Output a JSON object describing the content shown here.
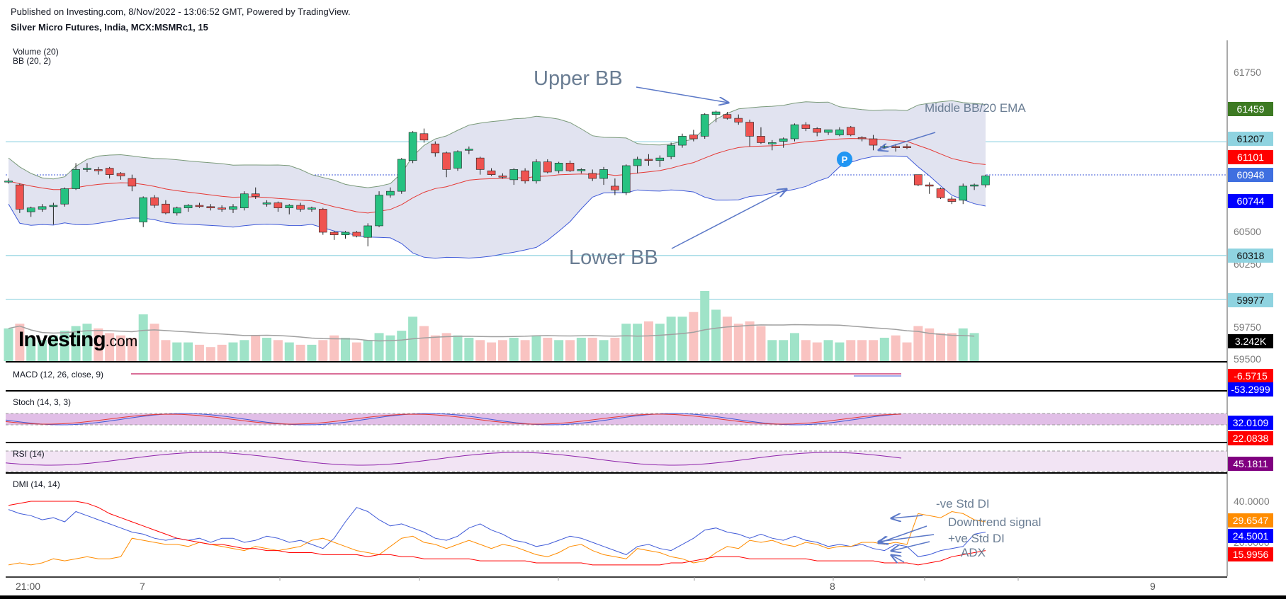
{
  "header": {
    "published": "Published on Investing.com, 8/Nov/2022 - 13:06:52 GMT, Powered by TradingView.",
    "symbol": "Silver Micro Futures, India, MCX:MSMRc1, 15"
  },
  "logo": {
    "main": "Investing",
    "suffix": ".com"
  },
  "indicators": {
    "volume": "Volume (20)",
    "bb": "BB (20, 2)",
    "macd": "MACD (12, 26, close, 9)",
    "stoch": "Stoch (14, 3, 3)",
    "rsi": "RSI (14)",
    "dmi": "DMI (14, 14)"
  },
  "annotations": {
    "upper_bb": "Upper BB",
    "middle_bb": "Middle BB/20 EMA",
    "lower_bb": "Lower BB",
    "neg_di": "-ve Std DI",
    "downtrend": "Downtrend signal",
    "pos_di": "+ve Std DI",
    "adx": "ADX"
  },
  "colors": {
    "up": "#26c281",
    "down": "#ef5350",
    "band_fill": "#e1e3f0",
    "upper_lower_band": "#3f5ad8",
    "middle_band": "#e53935",
    "vol_up": "#9fe3c8",
    "vol_down": "#f9c3c1",
    "vol_ma": "#a0a0a0",
    "hline": "#8fd3e0",
    "current_line": "#3f5ad8",
    "osc_fill": "#e1bee7",
    "rsi_fill": "#f2e4f4",
    "annotation": "#6a7d93",
    "arrow": "#5b78c7"
  },
  "chart_data": {
    "type": "candlestick",
    "candles": [
      [
        60900,
        60920,
        60880,
        60900
      ],
      [
        60870,
        60880,
        60650,
        60680
      ],
      [
        60660,
        60700,
        60620,
        60690
      ],
      [
        60680,
        60720,
        60660,
        60700
      ],
      [
        60700,
        60730,
        60560,
        60710
      ],
      [
        60720,
        60850,
        60700,
        60840
      ],
      [
        60840,
        61040,
        60830,
        60990
      ],
      [
        60990,
        61040,
        60970,
        61000
      ],
      [
        60990,
        61010,
        60950,
        60980
      ],
      [
        61000,
        61010,
        60920,
        60950
      ],
      [
        60960,
        60970,
        60910,
        60940
      ],
      [
        60920,
        60950,
        60820,
        60860
      ],
      [
        60580,
        60780,
        60540,
        60770
      ],
      [
        60770,
        60790,
        60690,
        60710
      ],
      [
        60720,
        60750,
        60640,
        60650
      ],
      [
        60650,
        60700,
        60630,
        60690
      ],
      [
        60690,
        60720,
        60660,
        60710
      ],
      [
        60710,
        60730,
        60690,
        60700
      ],
      [
        60700,
        60720,
        60670,
        60690
      ],
      [
        60690,
        60710,
        60660,
        60680
      ],
      [
        60680,
        60720,
        60650,
        60700
      ],
      [
        60690,
        60820,
        60670,
        60800
      ],
      [
        60800,
        60850,
        60760,
        60780
      ],
      [
        60720,
        60750,
        60700,
        60730
      ],
      [
        60730,
        60740,
        60660,
        60690
      ],
      [
        60690,
        60720,
        60640,
        60710
      ],
      [
        60710,
        60730,
        60660,
        60680
      ],
      [
        60680,
        60700,
        60660,
        60690
      ],
      [
        60680,
        60690,
        60480,
        60500
      ],
      [
        60500,
        60510,
        60440,
        60480
      ],
      [
        60480,
        60510,
        60450,
        60500
      ],
      [
        60500,
        60510,
        60460,
        60470
      ],
      [
        60460,
        60570,
        60390,
        60550
      ],
      [
        60550,
        60820,
        60540,
        60790
      ],
      [
        60790,
        60850,
        60770,
        60820
      ],
      [
        60820,
        61080,
        60800,
        61070
      ],
      [
        61060,
        61290,
        61040,
        61280
      ],
      [
        61270,
        61310,
        61200,
        61220
      ],
      [
        61190,
        61210,
        61090,
        61120
      ],
      [
        61120,
        61130,
        60930,
        60990
      ],
      [
        61000,
        61140,
        60980,
        61130
      ],
      [
        61140,
        61170,
        61110,
        61150
      ],
      [
        61080,
        61090,
        60950,
        60990
      ],
      [
        60980,
        61000,
        60940,
        60950
      ],
      [
        60940,
        60960,
        60920,
        60930
      ],
      [
        60910,
        61000,
        60870,
        60990
      ],
      [
        60980,
        61000,
        60880,
        60900
      ],
      [
        60900,
        61070,
        60880,
        61050
      ],
      [
        61050,
        61070,
        60960,
        60970
      ],
      [
        60980,
        61050,
        60960,
        61040
      ],
      [
        61040,
        61060,
        60970,
        60980
      ],
      [
        60980,
        61000,
        60960,
        60990
      ],
      [
        60960,
        60990,
        60900,
        60920
      ],
      [
        60920,
        61010,
        60870,
        60990
      ],
      [
        60860,
        60920,
        60790,
        60830
      ],
      [
        60810,
        61030,
        60790,
        61020
      ],
      [
        61020,
        61090,
        60960,
        61070
      ],
      [
        61070,
        61110,
        61020,
        61060
      ],
      [
        61060,
        61100,
        61010,
        61080
      ],
      [
        61090,
        61200,
        61070,
        61180
      ],
      [
        61180,
        61270,
        61160,
        61250
      ],
      [
        61260,
        61300,
        61210,
        61230
      ],
      [
        61250,
        61430,
        61230,
        61420
      ],
      [
        61420,
        61450,
        61360,
        61440
      ],
      [
        61420,
        61440,
        61380,
        61390
      ],
      [
        61390,
        61420,
        61340,
        61360
      ],
      [
        61360,
        61380,
        61170,
        61250
      ],
      [
        61250,
        61320,
        61190,
        61200
      ],
      [
        61190,
        61220,
        61140,
        61200
      ],
      [
        61210,
        61240,
        61160,
        61230
      ],
      [
        61230,
        61350,
        61210,
        61340
      ],
      [
        61340,
        61360,
        61290,
        61310
      ],
      [
        61310,
        61320,
        61250,
        61280
      ],
      [
        61280,
        61300,
        61260,
        61300
      ],
      [
        61260,
        61320,
        61250,
        61300
      ],
      [
        61320,
        61330,
        61250,
        61260
      ],
      [
        61240,
        61250,
        61210,
        61230
      ],
      [
        61230,
        61260,
        61140,
        61180
      ],
      [
        61170,
        61190,
        61150,
        61170
      ],
      [
        61170,
        61190,
        61130,
        61160
      ],
      [
        61170,
        61190,
        61150,
        61160
      ],
      [
        60950,
        60950,
        60860,
        60870
      ],
      [
        60870,
        60890,
        60800,
        60860
      ],
      [
        60840,
        60850,
        60760,
        60770
      ],
      [
        60760,
        60780,
        60720,
        60740
      ],
      [
        60750,
        60880,
        60720,
        60860
      ],
      [
        60860,
        60880,
        60830,
        60870
      ],
      [
        60870,
        60950,
        60850,
        60940
      ]
    ],
    "volume": [
      14,
      16,
      10,
      9,
      11,
      13,
      15,
      16,
      14,
      12,
      11,
      10,
      20,
      16,
      9,
      8,
      8,
      7,
      6,
      7,
      8,
      9,
      11,
      10,
      9,
      8,
      7,
      7,
      9,
      11,
      10,
      8,
      9,
      12,
      11,
      13,
      19,
      15,
      11,
      12,
      11,
      10,
      9,
      8,
      9,
      10,
      9,
      11,
      10,
      9,
      9,
      10,
      10,
      9,
      10,
      16,
      16,
      17,
      16,
      19,
      19,
      21,
      30,
      22,
      19,
      16,
      17,
      15,
      9,
      9,
      12,
      9,
      8,
      9,
      8,
      9,
      9,
      9,
      10,
      11,
      8,
      15,
      14,
      12,
      12,
      14,
      12
    ],
    "price_axis": {
      "ticks": [
        "61750",
        "61250",
        "60500",
        "60250",
        "59750",
        "59500"
      ]
    },
    "price_badges": [
      {
        "label": "61459",
        "bg": "#3d7a23",
        "fg": "#ffffff"
      },
      {
        "label": "61207",
        "bg": "#8fd3e0",
        "fg": "#111111"
      },
      {
        "label": "61101",
        "bg": "#ff0000",
        "fg": "#ffffff"
      },
      {
        "label": "60948",
        "bg": "#3f6fe0",
        "fg": "#ffffff"
      },
      {
        "label": "60744",
        "bg": "#0000ff",
        "fg": "#ffffff"
      },
      {
        "label": "60318",
        "bg": "#8fd3e0",
        "fg": "#111111"
      },
      {
        "label": "59977",
        "bg": "#8fd3e0",
        "fg": "#111111"
      },
      {
        "label": "3.242K",
        "bg": "#000000",
        "fg": "#ffffff"
      }
    ],
    "macd_badges": [
      {
        "label": "-6.5715",
        "bg": "#ff0000",
        "fg": "#ffffff"
      },
      {
        "label": "-53.2999",
        "bg": "#0000ff",
        "fg": "#ffffff"
      }
    ],
    "stoch_badges": [
      {
        "label": "32.0109",
        "bg": "#0000ff",
        "fg": "#ffffff"
      },
      {
        "label": "22.0838",
        "bg": "#ff0000",
        "fg": "#ffffff"
      }
    ],
    "rsi_badge": {
      "label": "45.1811",
      "bg": "#800080",
      "fg": "#ffffff"
    },
    "dmi_axis": {
      "ticks": [
        "40.0000",
        "20.0000"
      ]
    },
    "dmi_badges": [
      {
        "label": "29.6547",
        "bg": "#ff8c00",
        "fg": "#ffffff"
      },
      {
        "label": "24.5001",
        "bg": "#0000ff",
        "fg": "#ffffff"
      },
      {
        "label": "15.9956",
        "bg": "#ff0000",
        "fg": "#ffffff"
      }
    ],
    "x_labels": [
      "21:00",
      "7",
      "8",
      "9"
    ]
  }
}
